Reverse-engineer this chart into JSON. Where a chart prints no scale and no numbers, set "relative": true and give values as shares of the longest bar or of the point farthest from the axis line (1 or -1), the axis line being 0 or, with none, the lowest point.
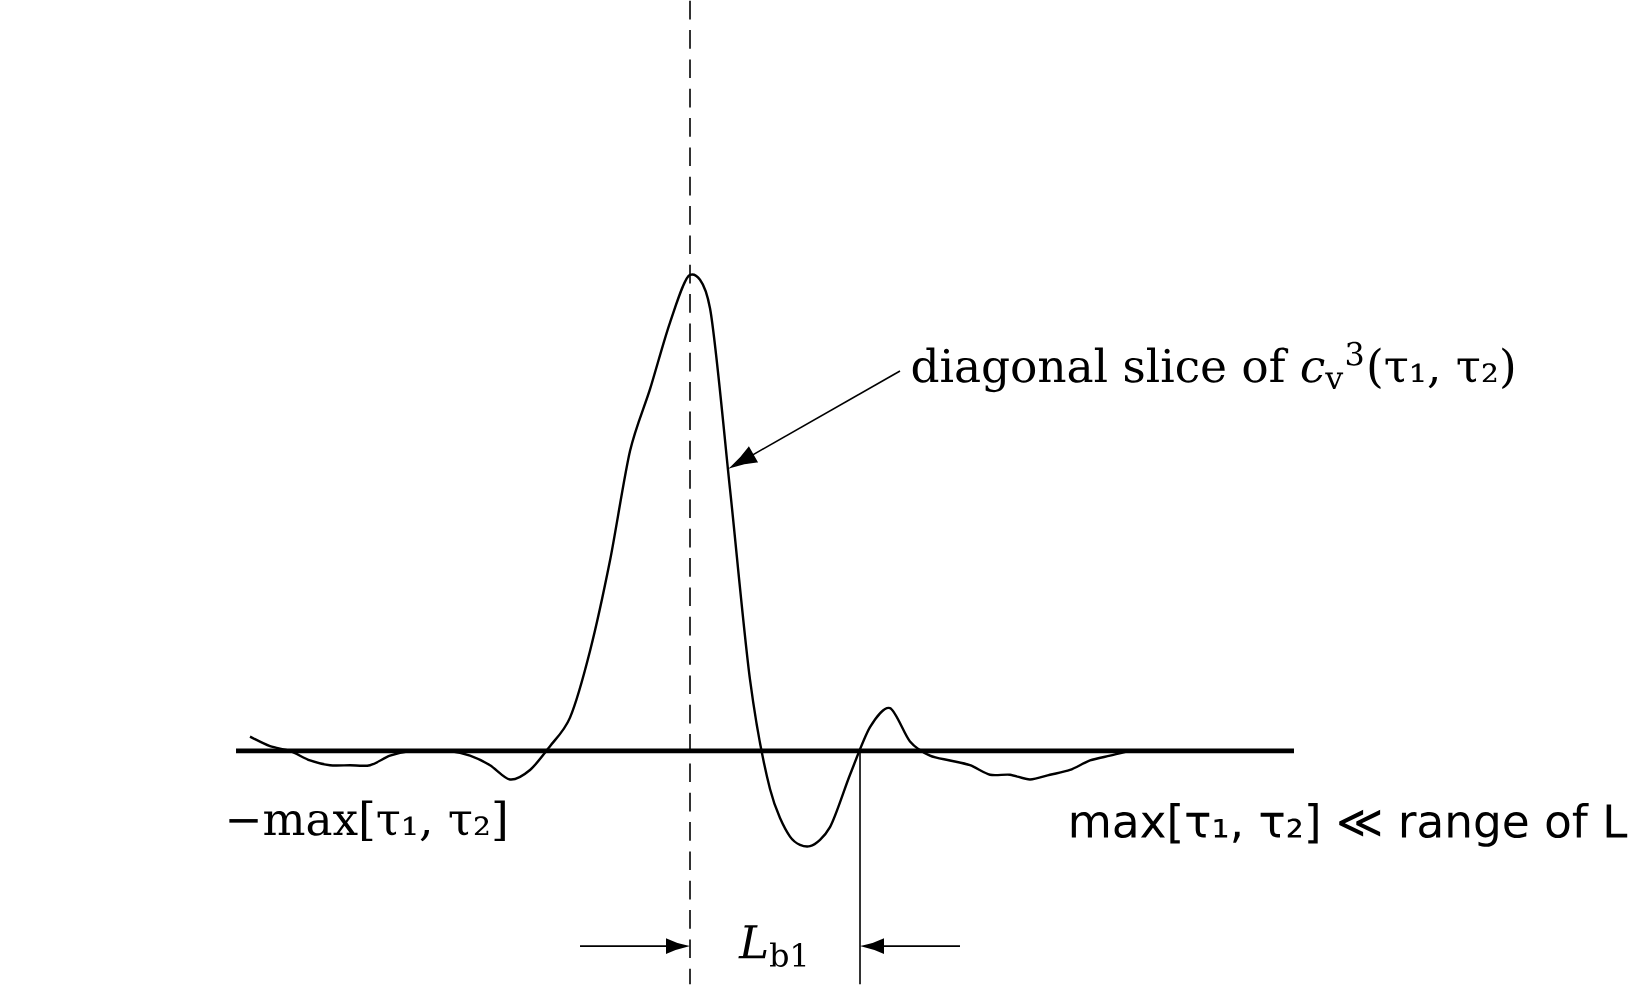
{
  "chart_data": {
    "type": "line",
    "relative": true,
    "categories": [
      null,
      null,
      null,
      null,
      null,
      null,
      null,
      null,
      null,
      null,
      null,
      null,
      null,
      null,
      null,
      null,
      null,
      null,
      null,
      null,
      null,
      null,
      null,
      null,
      null,
      null,
      null,
      null,
      null,
      null,
      null,
      null,
      null,
      null,
      null,
      null,
      null,
      null,
      null,
      null,
      null,
      null,
      null,
      null,
      null,
      null,
      null,
      null
    ],
    "series": [
      {
        "color": "#000000",
        "values": [
          0.03,
          0.01,
          0.0,
          -0.02,
          -0.03,
          -0.03,
          -0.03,
          -0.01,
          0.0,
          0.0,
          0.0,
          -0.01,
          -0.03,
          -0.06,
          -0.04,
          0.01,
          0.07,
          0.21,
          0.4,
          0.63,
          0.76,
          0.9,
          1,
          0.93,
          0.55,
          0.15,
          -0.08,
          -0.18,
          -0.2,
          -0.16,
          -0.05,
          0.05,
          0.09,
          0.02,
          -0.01,
          -0.02,
          -0.03,
          -0.05,
          -0.05,
          -0.06,
          -0.05,
          -0.04,
          -0.02,
          -0.01,
          0.0,
          0,
          0,
          0
        ]
      }
    ],
    "annotations": [
      "diagonal slice of *c*$_{v}$$^{3}$(τ₁, τ₂)",
      "−max[τ₁, τ₂]",
      "max[τ₁, τ₂] ≪ range of L",
      "*L*$_{b1}$"
    ]
  }
}
